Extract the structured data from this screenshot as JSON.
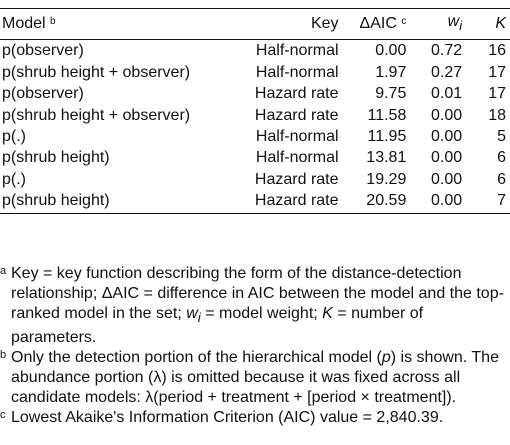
{
  "table": {
    "headers": {
      "model": "Model",
      "model_mark": "b",
      "key": "Key",
      "daic": "ΔAIC",
      "daic_mark": "c",
      "w_base": "w",
      "w_sub": "i",
      "k": "K"
    },
    "rows": [
      {
        "model": "p(observer)",
        "key": "Half-normal",
        "daic": "0.00",
        "w": "0.72",
        "k": "16"
      },
      {
        "model": "p(shrub height + observer)",
        "key": "Half-normal",
        "daic": "1.97",
        "w": "0.27",
        "k": "17"
      },
      {
        "model": "p(observer)",
        "key": "Hazard rate",
        "daic": "9.75",
        "w": "0.01",
        "k": "17"
      },
      {
        "model": "p(shrub height + observer)",
        "key": "Hazard rate",
        "daic": "11.58",
        "w": "0.00",
        "k": "18"
      },
      {
        "model": "p(.)",
        "key": "Half-normal",
        "daic": "11.95",
        "w": "0.00",
        "k": "5"
      },
      {
        "model": "p(shrub height)",
        "key": "Half-normal",
        "daic": "13.81",
        "w": "0.00",
        "k": "6"
      },
      {
        "model": "p(.)",
        "key": "Hazard rate",
        "daic": "19.29",
        "w": "0.00",
        "k": "6"
      },
      {
        "model": "p(shrub height)",
        "key": "Hazard rate",
        "daic": "20.59",
        "w": "0.00",
        "k": "7"
      }
    ]
  },
  "footnotes": [
    {
      "mark": "a",
      "text": "Key = key function describing the form of the distance-detection relationship; ΔAIC = difference in AIC between the model and the top-ranked model in the set; w_i = model weight; K = number of parameters."
    },
    {
      "mark": "b",
      "text": "Only the detection portion of the hierarchical model (p) is shown. The abundance portion (λ) is omitted because it was fixed across all candidate models: λ(period + treatment + [period × treatment])."
    },
    {
      "mark": "c",
      "text": "Lowest Akaike's Information Criterion (AIC) value = 2,840.39."
    }
  ]
}
